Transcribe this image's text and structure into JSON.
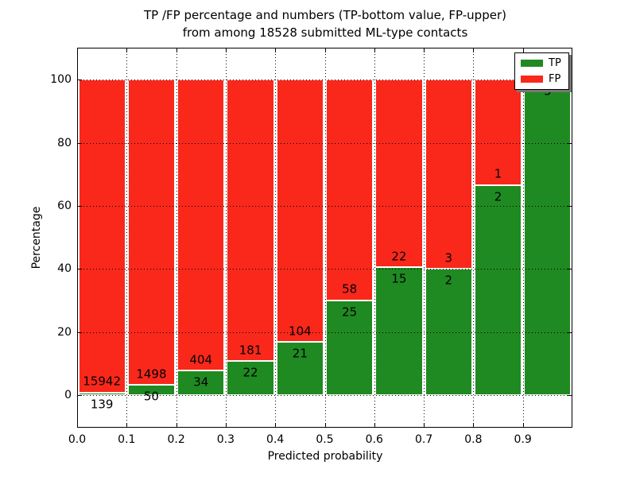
{
  "title": {
    "line1": "TP /FP percentage and numbers (TP-bottom value, FP-upper)",
    "line2": "from among 18528 submitted ML-type contacts"
  },
  "axes": {
    "x_label": "Predicted probability",
    "y_label": "Percentage"
  },
  "legend": {
    "items": [
      {
        "label": "TP",
        "series": "tp"
      },
      {
        "label": "FP",
        "series": "fp"
      }
    ]
  },
  "chart_data": {
    "type": "bar",
    "stacked": true,
    "normalized": "each bin scaled to 100%",
    "title": "TP /FP percentage and numbers (TP-bottom value, FP-upper) from among 18528 submitted ML-type contacts",
    "total_submitted": 18528,
    "xlabel": "Predicted probability",
    "ylabel": "Percentage",
    "xlim": [
      0.0,
      1.0
    ],
    "ylim": [
      -10.33,
      110.15
    ],
    "x_tick_values": [
      0.0,
      0.1,
      0.2,
      0.3,
      0.4,
      0.5,
      0.6,
      0.7,
      0.8,
      0.9
    ],
    "x_tick_labels": [
      "0.0",
      "0.1",
      "0.2",
      "0.3",
      "0.4",
      "0.5",
      "0.6",
      "0.7",
      "0.8",
      "0.9"
    ],
    "y_tick_values": [
      0,
      20,
      40,
      60,
      80,
      100
    ],
    "y_tick_labels": [
      "0",
      "20",
      "40",
      "60",
      "80",
      "100"
    ],
    "grid": {
      "style": "dotted",
      "color": "#000000",
      "on": true
    },
    "legend_position": "upper right",
    "colors": {
      "tp": "#1f8a21",
      "fp": "#f9281b"
    },
    "series": [
      {
        "name": "TP",
        "counts": [
          139,
          50,
          34,
          22,
          21,
          25,
          15,
          2,
          2,
          5
        ]
      },
      {
        "name": "FP",
        "counts": [
          15942,
          1498,
          404,
          181,
          104,
          58,
          22,
          3,
          1,
          0
        ]
      }
    ],
    "bins": [
      {
        "range": [
          0.0,
          0.1
        ],
        "tp": 139,
        "fp": 15942
      },
      {
        "range": [
          0.1,
          0.2
        ],
        "tp": 50,
        "fp": 1498
      },
      {
        "range": [
          0.2,
          0.3
        ],
        "tp": 34,
        "fp": 404
      },
      {
        "range": [
          0.3,
          0.4
        ],
        "tp": 22,
        "fp": 181
      },
      {
        "range": [
          0.4,
          0.5
        ],
        "tp": 21,
        "fp": 104
      },
      {
        "range": [
          0.5,
          0.6
        ],
        "tp": 25,
        "fp": 58
      },
      {
        "range": [
          0.6,
          0.7
        ],
        "tp": 15,
        "fp": 22
      },
      {
        "range": [
          0.7,
          0.8
        ],
        "tp": 2,
        "fp": 3
      },
      {
        "range": [
          0.8,
          0.9
        ],
        "tp": 2,
        "fp": 1
      },
      {
        "range": [
          0.9,
          1.0
        ],
        "tp": 5,
        "fp": 0
      }
    ]
  }
}
